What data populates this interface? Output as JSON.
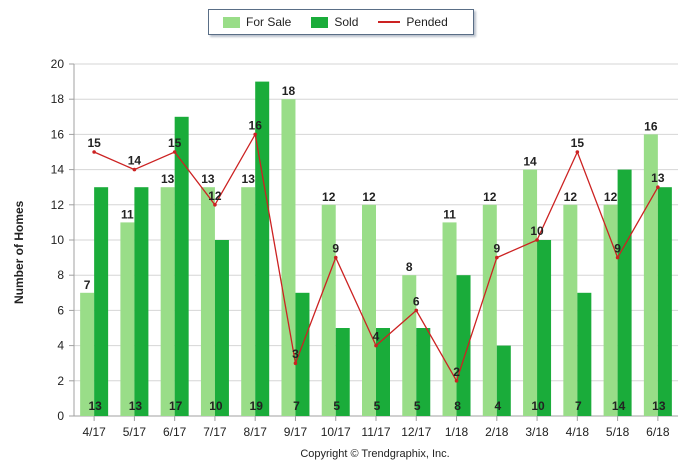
{
  "chart_data": {
    "type": "bar",
    "categories": [
      "4/17",
      "5/17",
      "6/17",
      "7/17",
      "8/17",
      "9/17",
      "10/17",
      "11/17",
      "12/17",
      "1/18",
      "2/18",
      "3/18",
      "4/18",
      "5/18",
      "6/18"
    ],
    "series": [
      {
        "name": "For Sale",
        "type": "bar",
        "color": "#99dd88",
        "values": [
          7,
          11,
          13,
          13,
          13,
          18,
          12,
          12,
          8,
          11,
          12,
          14,
          12,
          12,
          16
        ]
      },
      {
        "name": "Sold",
        "type": "bar",
        "color": "#1aac3a",
        "values": [
          13,
          13,
          17,
          10,
          19,
          7,
          5,
          5,
          5,
          8,
          4,
          10,
          7,
          14,
          13
        ]
      },
      {
        "name": "Pended",
        "type": "line",
        "color": "#cc2222",
        "values": [
          15,
          14,
          15,
          12,
          16,
          3,
          9,
          4,
          6,
          2,
          9,
          10,
          15,
          9,
          13
        ]
      }
    ],
    "ylabel": "Number of Homes",
    "xlabel": "",
    "ylim": [
      0,
      20
    ],
    "yticks": [
      0,
      2,
      4,
      6,
      8,
      10,
      12,
      14,
      16,
      18,
      20
    ],
    "grid": true,
    "legend_position": "top-center"
  },
  "footer": {
    "copyright": "Copyright © Trendgraphix, Inc."
  },
  "colors": {
    "grid": "#d6d6d6",
    "axis": "#a0a0a0",
    "text": "#222222"
  }
}
